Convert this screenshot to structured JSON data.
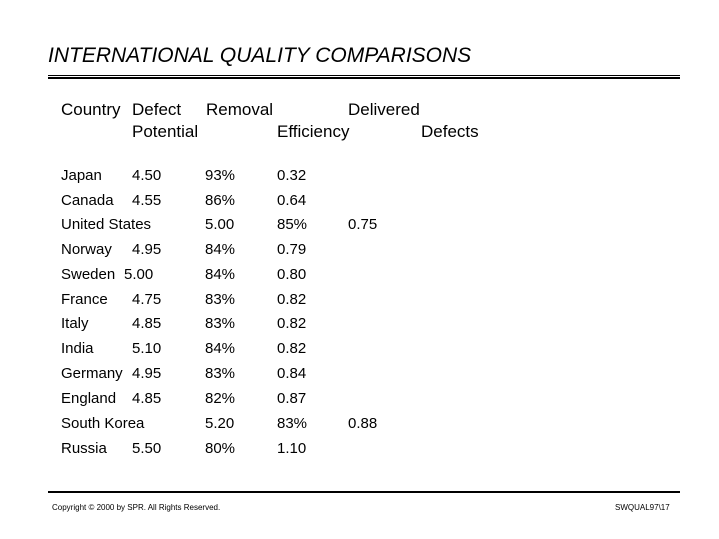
{
  "title": "INTERNATIONAL QUALITY COMPARISONS",
  "table": {
    "headers": {
      "country": "Country",
      "defect": "Defect",
      "potential": "Potential",
      "removal": "Removal",
      "efficiency": "Efficiency",
      "delivered": "Delivered",
      "defects": "Defects"
    },
    "rows": [
      {
        "country": "Japan",
        "potential": "4.50",
        "efficiency": "93%",
        "delivered": "0.32"
      },
      {
        "country": "Canada",
        "potential": "4.55",
        "efficiency": "86%",
        "delivered": "0.64"
      },
      {
        "country": "United States",
        "potential": "5.00",
        "efficiency": "85%",
        "delivered": "0.75"
      },
      {
        "country": "Norway",
        "potential": "4.95",
        "efficiency": "84%",
        "delivered": "0.79"
      },
      {
        "country": "Sweden",
        "potential": "5.00",
        "efficiency": "84%",
        "delivered": "0.80"
      },
      {
        "country": "France",
        "potential": "4.75",
        "efficiency": "83%",
        "delivered": "0.82"
      },
      {
        "country": "Italy",
        "potential": "4.85",
        "efficiency": "83%",
        "delivered": "0.82"
      },
      {
        "country": "India",
        "potential": "5.10",
        "efficiency": "84%",
        "delivered": "0.82"
      },
      {
        "country": "Germany",
        "potential": "4.95",
        "efficiency": "83%",
        "delivered": "0.84"
      },
      {
        "country": "England",
        "potential": "4.85",
        "efficiency": "82%",
        "delivered": "0.87"
      },
      {
        "country": "South Korea",
        "potential": "5.20",
        "efficiency": "83%",
        "delivered": "0.88"
      },
      {
        "country": "Russia",
        "potential": "5.50",
        "efficiency": "80%",
        "delivered": "1.10"
      }
    ]
  },
  "footer": {
    "copyright": "Copyright © 2000 by SPR.  All Rights Reserved.",
    "code": "SWQUAL97\\17"
  }
}
